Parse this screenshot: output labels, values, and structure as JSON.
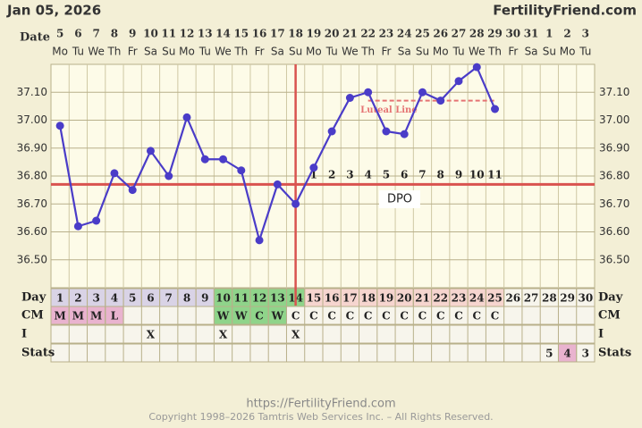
{
  "header": {
    "date": "Jan 05, 2026",
    "site": "FertilityFriend.com"
  },
  "chart_data": {
    "type": "line",
    "date_label": "Date",
    "dates": [
      5,
      6,
      7,
      8,
      9,
      10,
      11,
      12,
      13,
      14,
      15,
      16,
      17,
      18,
      19,
      20,
      21,
      22,
      23,
      24,
      25,
      26,
      27,
      28,
      29,
      30,
      31,
      1,
      2,
      3
    ],
    "weekdays": [
      "Mo",
      "Tu",
      "We",
      "Th",
      "Fr",
      "Sa",
      "Su",
      "Mo",
      "Tu",
      "We",
      "Th",
      "Fr",
      "Sa",
      "Su",
      "Mo",
      "Tu",
      "We",
      "Th",
      "Fr",
      "Sa",
      "Su",
      "Mo",
      "Tu",
      "We",
      "Th",
      "Fr",
      "Sa",
      "Su",
      "Mo",
      "Tu"
    ],
    "categories": [
      1,
      2,
      3,
      4,
      5,
      6,
      7,
      8,
      9,
      10,
      11,
      12,
      13,
      14,
      15,
      16,
      17,
      18,
      19,
      20,
      21,
      22,
      23,
      24,
      25,
      26,
      27,
      28,
      29,
      30
    ],
    "values": [
      36.98,
      36.62,
      36.64,
      36.81,
      36.75,
      36.89,
      36.8,
      37.01,
      36.86,
      36.86,
      36.82,
      36.57,
      36.77,
      36.7,
      36.83,
      36.96,
      37.08,
      37.1,
      36.96,
      36.95,
      37.1,
      37.07,
      37.14,
      37.19,
      37.04,
      null,
      null,
      null,
      null,
      null
    ],
    "color": "#4a3cc8",
    "ylim": [
      36.4,
      37.2
    ],
    "yticks": [
      {
        "value": 36.5,
        "label": "36.50"
      },
      {
        "value": 36.6,
        "label": "36.60"
      },
      {
        "value": 36.7,
        "label": "36.70"
      },
      {
        "value": 36.8,
        "label": "36.80"
      },
      {
        "value": 36.9,
        "label": "36.90"
      },
      {
        "value": 37.0,
        "label": "37.00"
      },
      {
        "value": 37.1,
        "label": "37.10"
      }
    ],
    "grid": true,
    "coverline": 36.77,
    "coverline_color": "#d9534f",
    "ovulation_day": 14,
    "luteal_line": {
      "label": "Luteal Line",
      "value": 37.07,
      "start_day": 18,
      "end_day": 25,
      "color": "#e57373"
    },
    "dpo": {
      "label": "DPO",
      "values": [
        null,
        null,
        null,
        null,
        null,
        null,
        null,
        null,
        null,
        null,
        null,
        null,
        null,
        null,
        1,
        2,
        3,
        4,
        5,
        6,
        7,
        8,
        9,
        10,
        11,
        null,
        null,
        null,
        null,
        null
      ]
    },
    "rows": {
      "day_label": "Day",
      "day_fills": [
        "#d9d3e6",
        "#d9d3e6",
        "#d9d3e6",
        "#d9d3e6",
        "#d9d3e6",
        "#d9d3e6",
        "#d9d3e6",
        "#d9d3e6",
        "#d9d3e6",
        "#8fd48a",
        "#8fd48a",
        "#8fd48a",
        "#8fd48a",
        "#8fd48a",
        "#f6d5cf",
        "#f6d5cf",
        "#f6d5cf",
        "#f6d5cf",
        "#f6d5cf",
        "#f6d5cf",
        "#f6d5cf",
        "#f6d5cf",
        "#f6d5cf",
        "#f6d5cf",
        "#f6d5cf",
        "#f7f5ec",
        "#f7f5ec",
        "#f7f5ec",
        "#f7f5ec",
        "#f7f5ec"
      ],
      "cm_label": "CM",
      "cm": [
        "M",
        "M",
        "M",
        "L",
        null,
        null,
        null,
        null,
        null,
        "W",
        "W",
        "C",
        "W",
        "C",
        "C",
        "C",
        "C",
        "C",
        "C",
        "C",
        "C",
        "C",
        "C",
        "C",
        "C",
        null,
        null,
        null,
        null,
        null
      ],
      "cm_fills": [
        "#e9b3cf",
        "#e9b3cf",
        "#e9b3cf",
        "#e9b3cf",
        null,
        null,
        null,
        null,
        null,
        "#8fd48a",
        "#8fd48a",
        "#8fd48a",
        "#8fd48a",
        null,
        null,
        null,
        null,
        null,
        null,
        null,
        null,
        null,
        null,
        null,
        null,
        null,
        null,
        null,
        null,
        null
      ],
      "i_label": "I",
      "i": [
        null,
        null,
        null,
        null,
        null,
        "X",
        null,
        null,
        null,
        "X",
        null,
        null,
        null,
        "X",
        null,
        null,
        null,
        null,
        null,
        null,
        null,
        null,
        null,
        null,
        null,
        null,
        null,
        null,
        null,
        null
      ],
      "stats_label": "Stats",
      "stats": [
        null,
        null,
        null,
        null,
        null,
        null,
        null,
        null,
        null,
        null,
        null,
        null,
        null,
        null,
        null,
        null,
        null,
        null,
        null,
        null,
        null,
        null,
        null,
        null,
        null,
        null,
        null,
        5,
        4,
        3
      ],
      "stats_fills": [
        null,
        null,
        null,
        null,
        null,
        null,
        null,
        null,
        null,
        null,
        null,
        null,
        null,
        null,
        null,
        null,
        null,
        null,
        null,
        null,
        null,
        null,
        null,
        null,
        null,
        null,
        null,
        null,
        "#e9b3cf",
        null
      ]
    }
  },
  "footer": {
    "url": "https://FertilityFriend.com",
    "copyright": "Copyright 1998–2026 Tamtris Web Services Inc. – All Rights Reserved."
  }
}
